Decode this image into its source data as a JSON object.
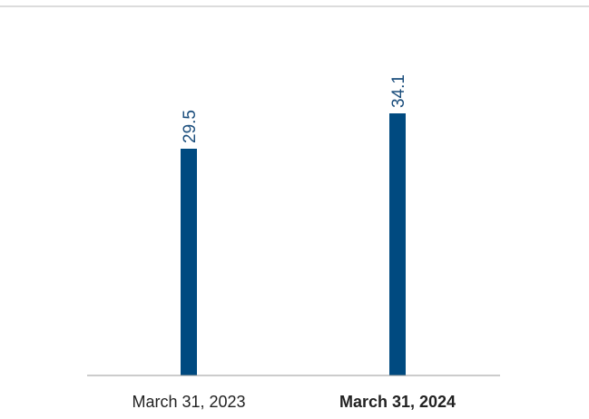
{
  "chart_data": {
    "type": "bar",
    "categories": [
      "March 31, 2023",
      "March 31, 2024"
    ],
    "values": [
      29.5,
      34.1
    ],
    "value_labels": [
      "29.5",
      "34.1"
    ],
    "emphasized_category": "March 31, 2024",
    "ylim": [
      0,
      40
    ],
    "grid": false,
    "legend": "none",
    "colors": {
      "bar": "#004a80",
      "label_text": "#1a4d7c",
      "axis": "#999999",
      "category_text": "#222222"
    }
  }
}
